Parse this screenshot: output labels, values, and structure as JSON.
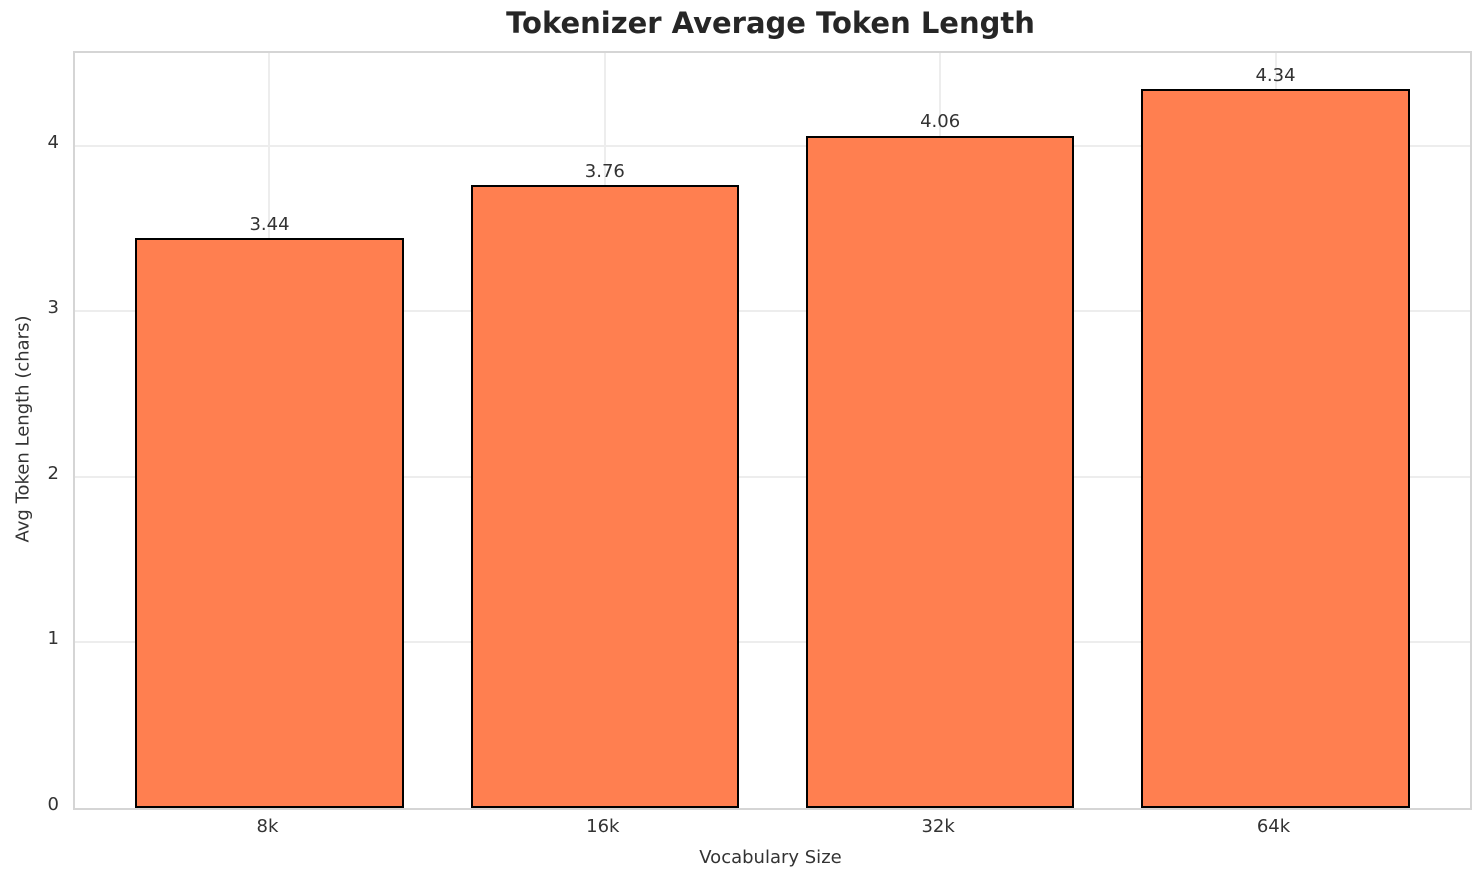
{
  "chart_data": {
    "type": "bar",
    "title": "Tokenizer Average Token Length",
    "xlabel": "Vocabulary Size",
    "ylabel": "Avg Token Length (chars)",
    "categories": [
      "8k",
      "16k",
      "32k",
      "64k"
    ],
    "values": [
      3.44,
      3.76,
      4.06,
      4.34
    ],
    "value_labels": [
      "3.44",
      "3.76",
      "4.06",
      "4.34"
    ],
    "yticks": [
      0,
      1,
      2,
      3,
      4
    ],
    "ytick_labels": [
      "0",
      "1",
      "2",
      "3",
      "4"
    ],
    "ylim": [
      0,
      4.56
    ],
    "xlim": [
      -0.58,
      3.58
    ],
    "bar_width": 0.8,
    "grid": true,
    "legend_position": "none",
    "colors": {
      "bar_fill": "#FF7F50",
      "bar_edge": "#000000",
      "grid_line": "#ededed",
      "spine": "#d5d5d5",
      "tick_text": "#333333",
      "title_text": "#262626",
      "background": "#ffffff"
    }
  }
}
